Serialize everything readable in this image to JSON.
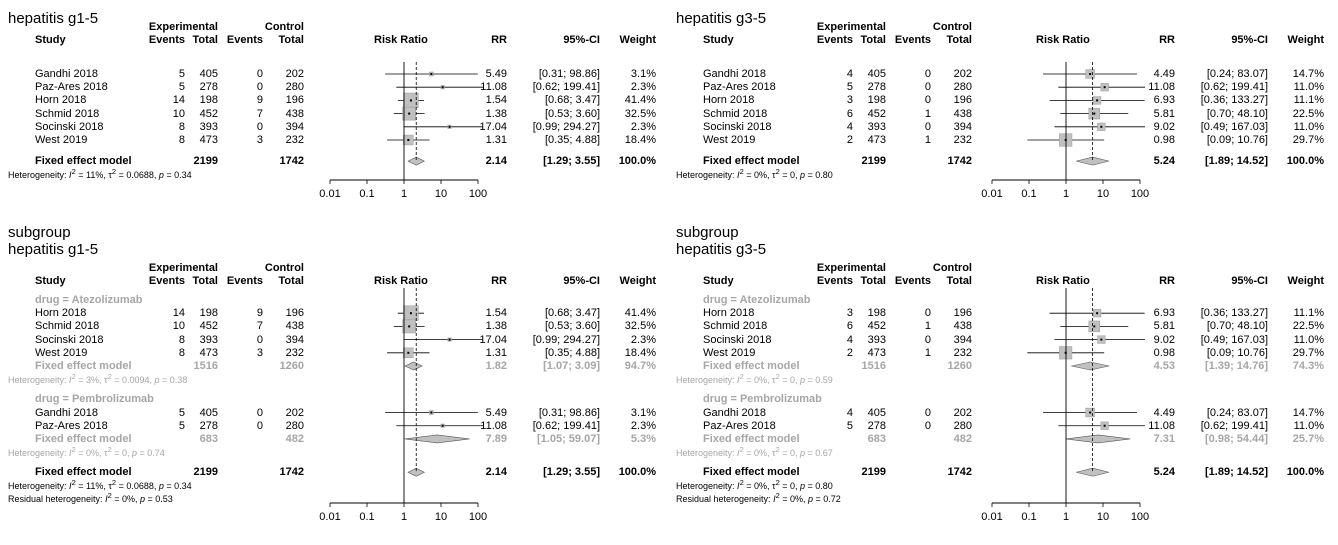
{
  "chart_data": [
    {
      "type": "forest",
      "title_lines": [
        "hepatitis g1-5"
      ],
      "headers": {
        "study": "Study",
        "exp": "Experimental",
        "ctrl": "Control",
        "events": "Events",
        "total": "Total",
        "plot": "Risk Ratio",
        "rr": "RR",
        "ci": "95%-CI",
        "weight": "Weight"
      },
      "x_axis": {
        "scale": "log",
        "ticks": [
          "0.01",
          "0.1",
          "1",
          "10",
          "100"
        ],
        "tick_values": [
          0.01,
          0.1,
          1,
          10,
          100
        ],
        "reference": 1
      },
      "rows": [
        {
          "kind": "study",
          "study": "Gandhi 2018",
          "ee": "5",
          "et": "405",
          "ce": "0",
          "ct": "202",
          "rr": 5.49,
          "lo": 0.31,
          "hi": 98.86,
          "rr_txt": "5.49",
          "ci_txt": "[0.31; 98.86]",
          "w_txt": "3.1%",
          "w": 3.1
        },
        {
          "kind": "study",
          "study": "Paz-Ares 2018",
          "ee": "5",
          "et": "278",
          "ce": "0",
          "ct": "280",
          "rr": 11.08,
          "lo": 0.62,
          "hi": 199.41,
          "rr_txt": "11.08",
          "ci_txt": "[0.62; 199.41]",
          "w_txt": "2.3%",
          "w": 2.3
        },
        {
          "kind": "study",
          "study": "Horn 2018",
          "ee": "14",
          "et": "198",
          "ce": "9",
          "ct": "196",
          "rr": 1.54,
          "lo": 0.68,
          "hi": 3.47,
          "rr_txt": "1.54",
          "ci_txt": "[0.68; 3.47]",
          "w_txt": "41.4%",
          "w": 41.4
        },
        {
          "kind": "study",
          "study": "Schmid 2018",
          "ee": "10",
          "et": "452",
          "ce": "7",
          "ct": "438",
          "rr": 1.38,
          "lo": 0.53,
          "hi": 3.6,
          "rr_txt": "1.38",
          "ci_txt": "[0.53; 3.60]",
          "w_txt": "32.5%",
          "w": 32.5
        },
        {
          "kind": "study",
          "study": "Socinski 2018",
          "ee": "8",
          "et": "393",
          "ce": "0",
          "ct": "394",
          "rr": 17.04,
          "lo": 0.99,
          "hi": 294.27,
          "rr_txt": "17.04",
          "ci_txt": "[0.99; 294.27]",
          "w_txt": "2.3%",
          "w": 2.3
        },
        {
          "kind": "study",
          "study": "West 2019",
          "ee": "8",
          "et": "473",
          "ce": "3",
          "ct": "232",
          "rr": 1.31,
          "lo": 0.35,
          "hi": 4.88,
          "rr_txt": "1.31",
          "ci_txt": "[0.35; 4.88]",
          "w_txt": "18.4%",
          "w": 18.4
        },
        {
          "kind": "blank"
        },
        {
          "kind": "pooled",
          "study": "Fixed effect model",
          "et": "2199",
          "ct": "1742",
          "rr": 2.14,
          "lo": 1.29,
          "hi": 3.55,
          "rr_txt": "2.14",
          "ci_txt": "[1.29; 3.55]",
          "w_txt": "100.0%"
        },
        {
          "kind": "het",
          "pre": "Heterogeneity: ",
          "i2": "I",
          "rest": " = 11%, τ",
          "rest2": " = 0.0688, ",
          "p": "p",
          "rest3": " = 0.34"
        }
      ]
    },
    {
      "type": "forest",
      "title_lines": [
        "hepatitis g3-5"
      ],
      "headers": {
        "study": "Study",
        "exp": "Experimental",
        "ctrl": "Control",
        "events": "Events",
        "total": "Total",
        "plot": "Risk Ratio",
        "rr": "RR",
        "ci": "95%-CI",
        "weight": "Weight"
      },
      "x_axis": {
        "scale": "log",
        "ticks": [
          "0.01",
          "0.1",
          "1",
          "10",
          "100"
        ],
        "tick_values": [
          0.01,
          0.1,
          1,
          10,
          100
        ],
        "reference": 1
      },
      "rows": [
        {
          "kind": "study",
          "study": "Gandhi 2018",
          "ee": "4",
          "et": "405",
          "ce": "0",
          "ct": "202",
          "rr": 4.49,
          "lo": 0.24,
          "hi": 83.07,
          "rr_txt": "4.49",
          "ci_txt": "[0.24; 83.07]",
          "w_txt": "14.7%",
          "w": 14.7
        },
        {
          "kind": "study",
          "study": "Paz-Ares 2018",
          "ee": "5",
          "et": "278",
          "ce": "0",
          "ct": "280",
          "rr": 11.08,
          "lo": 0.62,
          "hi": 199.41,
          "rr_txt": "11.08",
          "ci_txt": "[0.62; 199.41]",
          "w_txt": "11.0%",
          "w": 11.0
        },
        {
          "kind": "study",
          "study": "Horn 2018",
          "ee": "3",
          "et": "198",
          "ce": "0",
          "ct": "196",
          "rr": 6.93,
          "lo": 0.36,
          "hi": 133.27,
          "rr_txt": "6.93",
          "ci_txt": "[0.36; 133.27]",
          "w_txt": "11.1%",
          "w": 11.1
        },
        {
          "kind": "study",
          "study": "Schmid 2018",
          "ee": "6",
          "et": "452",
          "ce": "1",
          "ct": "438",
          "rr": 5.81,
          "lo": 0.7,
          "hi": 48.1,
          "rr_txt": "5.81",
          "ci_txt": "[0.70; 48.10]",
          "w_txt": "22.5%",
          "w": 22.5
        },
        {
          "kind": "study",
          "study": "Socinski 2018",
          "ee": "4",
          "et": "393",
          "ce": "0",
          "ct": "394",
          "rr": 9.02,
          "lo": 0.49,
          "hi": 167.03,
          "rr_txt": "9.02",
          "ci_txt": "[0.49; 167.03]",
          "w_txt": "11.0%",
          "w": 11.0
        },
        {
          "kind": "study",
          "study": "West 2019",
          "ee": "2",
          "et": "473",
          "ce": "1",
          "ct": "232",
          "rr": 0.98,
          "lo": 0.09,
          "hi": 10.76,
          "rr_txt": "0.98",
          "ci_txt": "[0.09; 10.76]",
          "w_txt": "29.7%",
          "w": 29.7
        },
        {
          "kind": "blank"
        },
        {
          "kind": "pooled",
          "study": "Fixed effect model",
          "et": "2199",
          "ct": "1742",
          "rr": 5.24,
          "lo": 1.89,
          "hi": 14.52,
          "rr_txt": "5.24",
          "ci_txt": "[1.89; 14.52]",
          "w_txt": "100.0%"
        },
        {
          "kind": "het",
          "pre": "Heterogeneity: ",
          "i2": "I",
          "rest": " = 0%, τ",
          "rest2": " = 0, ",
          "p": "p",
          "rest3": " = 0.80"
        }
      ]
    },
    {
      "type": "forest",
      "title_lines": [
        "subgroup",
        "hepatitis g1-5"
      ],
      "headers": {
        "study": "Study",
        "exp": "Experimental",
        "ctrl": "Control",
        "events": "Events",
        "total": "Total",
        "plot": "Risk Ratio",
        "rr": "RR",
        "ci": "95%-CI",
        "weight": "Weight"
      },
      "x_axis": {
        "scale": "log",
        "ticks": [
          "0.01",
          "0.1",
          "1",
          "10",
          "100"
        ],
        "tick_values": [
          0.01,
          0.1,
          1,
          10,
          100
        ],
        "reference": 1
      },
      "rows": [
        {
          "kind": "group",
          "label": "drug = Atezolizumab"
        },
        {
          "kind": "study",
          "study": "Horn 2018",
          "ee": "14",
          "et": "198",
          "ce": "9",
          "ct": "196",
          "rr": 1.54,
          "lo": 0.68,
          "hi": 3.47,
          "rr_txt": "1.54",
          "ci_txt": "[0.68; 3.47]",
          "w_txt": "41.4%",
          "w": 41.4
        },
        {
          "kind": "study",
          "study": "Schmid 2018",
          "ee": "10",
          "et": "452",
          "ce": "7",
          "ct": "438",
          "rr": 1.38,
          "lo": 0.53,
          "hi": 3.6,
          "rr_txt": "1.38",
          "ci_txt": "[0.53; 3.60]",
          "w_txt": "32.5%",
          "w": 32.5
        },
        {
          "kind": "study",
          "study": "Socinski 2018",
          "ee": "8",
          "et": "393",
          "ce": "0",
          "ct": "394",
          "rr": 17.04,
          "lo": 0.99,
          "hi": 294.27,
          "rr_txt": "17.04",
          "ci_txt": "[0.99; 294.27]",
          "w_txt": "2.3%",
          "w": 2.3
        },
        {
          "kind": "study",
          "study": "West 2019",
          "ee": "8",
          "et": "473",
          "ce": "3",
          "ct": "232",
          "rr": 1.31,
          "lo": 0.35,
          "hi": 4.88,
          "rr_txt": "1.31",
          "ci_txt": "[0.35; 4.88]",
          "w_txt": "18.4%",
          "w": 18.4
        },
        {
          "kind": "subpooled",
          "study": "Fixed effect model",
          "et": "1516",
          "ct": "1260",
          "rr": 1.82,
          "lo": 1.07,
          "hi": 3.09,
          "rr_txt": "1.82",
          "ci_txt": "[1.07; 3.09]",
          "w_txt": "94.7%"
        },
        {
          "kind": "subhet",
          "pre": "Heterogeneity: ",
          "i2": "I",
          "rest": " = 3%, τ",
          "rest2": " = 0.0094, ",
          "p": "p",
          "rest3": " = 0.38"
        },
        {
          "kind": "blank"
        },
        {
          "kind": "group",
          "label": "drug = Pembrolizumab"
        },
        {
          "kind": "study",
          "study": "Gandhi 2018",
          "ee": "5",
          "et": "405",
          "ce": "0",
          "ct": "202",
          "rr": 5.49,
          "lo": 0.31,
          "hi": 98.86,
          "rr_txt": "5.49",
          "ci_txt": "[0.31; 98.86]",
          "w_txt": "3.1%",
          "w": 3.1
        },
        {
          "kind": "study",
          "study": "Paz-Ares 2018",
          "ee": "5",
          "et": "278",
          "ce": "0",
          "ct": "280",
          "rr": 11.08,
          "lo": 0.62,
          "hi": 199.41,
          "rr_txt": "11.08",
          "ci_txt": "[0.62; 199.41]",
          "w_txt": "2.3%",
          "w": 2.3
        },
        {
          "kind": "subpooled",
          "study": "Fixed effect model",
          "et": "683",
          "ct": "482",
          "rr": 7.89,
          "lo": 1.05,
          "hi": 59.07,
          "rr_txt": "7.89",
          "ci_txt": "[1.05; 59.07]",
          "w_txt": "5.3%"
        },
        {
          "kind": "subhet",
          "pre": "Heterogeneity: ",
          "i2": "I",
          "rest": " = 0%, τ",
          "rest2": " = 0, ",
          "p": "p",
          "rest3": " = 0.74"
        },
        {
          "kind": "blank"
        },
        {
          "kind": "pooled",
          "study": "Fixed effect model",
          "et": "2199",
          "ct": "1742",
          "rr": 2.14,
          "lo": 1.29,
          "hi": 3.55,
          "rr_txt": "2.14",
          "ci_txt": "[1.29; 3.55]",
          "w_txt": "100.0%"
        },
        {
          "kind": "het",
          "pre": "Heterogeneity: ",
          "i2": "I",
          "rest": " = 11%, τ",
          "rest2": " = 0.0688, ",
          "p": "p",
          "rest3": " = 0.34"
        },
        {
          "kind": "het",
          "pre": "Residual heterogeneity: ",
          "i2": "I",
          "rest": " = 0%, ",
          "p": "p",
          "rest3": " = 0.53"
        }
      ]
    },
    {
      "type": "forest",
      "title_lines": [
        "subgroup",
        "hepatitis g3-5"
      ],
      "headers": {
        "study": "Study",
        "exp": "Experimental",
        "ctrl": "Control",
        "events": "Events",
        "total": "Total",
        "plot": "Risk Ratio",
        "rr": "RR",
        "ci": "95%-CI",
        "weight": "Weight"
      },
      "x_axis": {
        "scale": "log",
        "ticks": [
          "0.01",
          "0.1",
          "1",
          "10",
          "100"
        ],
        "tick_values": [
          0.01,
          0.1,
          1,
          10,
          100
        ],
        "reference": 1
      },
      "rows": [
        {
          "kind": "group",
          "label": "drug = Atezolizumab"
        },
        {
          "kind": "study",
          "study": "Horn 2018",
          "ee": "3",
          "et": "198",
          "ce": "0",
          "ct": "196",
          "rr": 6.93,
          "lo": 0.36,
          "hi": 133.27,
          "rr_txt": "6.93",
          "ci_txt": "[0.36; 133.27]",
          "w_txt": "11.1%",
          "w": 11.1
        },
        {
          "kind": "study",
          "study": "Schmid 2018",
          "ee": "6",
          "et": "452",
          "ce": "1",
          "ct": "438",
          "rr": 5.81,
          "lo": 0.7,
          "hi": 48.1,
          "rr_txt": "5.81",
          "ci_txt": "[0.70; 48.10]",
          "w_txt": "22.5%",
          "w": 22.5
        },
        {
          "kind": "study",
          "study": "Socinski 2018",
          "ee": "4",
          "et": "393",
          "ce": "0",
          "ct": "394",
          "rr": 9.02,
          "lo": 0.49,
          "hi": 167.03,
          "rr_txt": "9.02",
          "ci_txt": "[0.49; 167.03]",
          "w_txt": "11.0%",
          "w": 11.0
        },
        {
          "kind": "study",
          "study": "West 2019",
          "ee": "2",
          "et": "473",
          "ce": "1",
          "ct": "232",
          "rr": 0.98,
          "lo": 0.09,
          "hi": 10.76,
          "rr_txt": "0.98",
          "ci_txt": "[0.09; 10.76]",
          "w_txt": "29.7%",
          "w": 29.7
        },
        {
          "kind": "subpooled",
          "study": "Fixed effect model",
          "et": "1516",
          "ct": "1260",
          "rr": 4.53,
          "lo": 1.39,
          "hi": 14.76,
          "rr_txt": "4.53",
          "ci_txt": "[1.39; 14.76]",
          "w_txt": "74.3%"
        },
        {
          "kind": "subhet",
          "pre": "Heterogeneity: ",
          "i2": "I",
          "rest": " = 0%, τ",
          "rest2": " = 0, ",
          "p": "p",
          "rest3": " = 0.59"
        },
        {
          "kind": "blank"
        },
        {
          "kind": "group",
          "label": "drug = Pembrolizumab"
        },
        {
          "kind": "study",
          "study": "Gandhi 2018",
          "ee": "4",
          "et": "405",
          "ce": "0",
          "ct": "202",
          "rr": 4.49,
          "lo": 0.24,
          "hi": 83.07,
          "rr_txt": "4.49",
          "ci_txt": "[0.24; 83.07]",
          "w_txt": "14.7%",
          "w": 14.7
        },
        {
          "kind": "study",
          "study": "Paz-Ares 2018",
          "ee": "5",
          "et": "278",
          "ce": "0",
          "ct": "280",
          "rr": 11.08,
          "lo": 0.62,
          "hi": 199.41,
          "rr_txt": "11.08",
          "ci_txt": "[0.62; 199.41]",
          "w_txt": "11.0%",
          "w": 11.0
        },
        {
          "kind": "subpooled",
          "study": "Fixed effect model",
          "et": "683",
          "ct": "482",
          "rr": 7.31,
          "lo": 0.98,
          "hi": 54.44,
          "rr_txt": "7.31",
          "ci_txt": "[0.98; 54.44]",
          "w_txt": "25.7%"
        },
        {
          "kind": "subhet",
          "pre": "Heterogeneity: ",
          "i2": "I",
          "rest": " = 0%, τ",
          "rest2": " = 0, ",
          "p": "p",
          "rest3": " = 0.67"
        },
        {
          "kind": "blank"
        },
        {
          "kind": "pooled",
          "study": "Fixed effect model",
          "et": "2199",
          "ct": "1742",
          "rr": 5.24,
          "lo": 1.89,
          "hi": 14.52,
          "rr_txt": "5.24",
          "ci_txt": "[1.89; 14.52]",
          "w_txt": "100.0%"
        },
        {
          "kind": "het",
          "pre": "Heterogeneity: ",
          "i2": "I",
          "rest": " = 0%, τ",
          "rest2": " = 0, ",
          "p": "p",
          "rest3": " = 0.80"
        },
        {
          "kind": "het",
          "pre": "Residual heterogeneity: ",
          "i2": "I",
          "rest": " = 0%, ",
          "p": "p",
          "rest3": " = 0.72"
        }
      ]
    }
  ],
  "colors": {
    "subgroup_text": "#a6a6a6",
    "square": "#c0c0c0",
    "square_stroke": "#9a9a9a",
    "diamond": "#c0c0c0"
  }
}
